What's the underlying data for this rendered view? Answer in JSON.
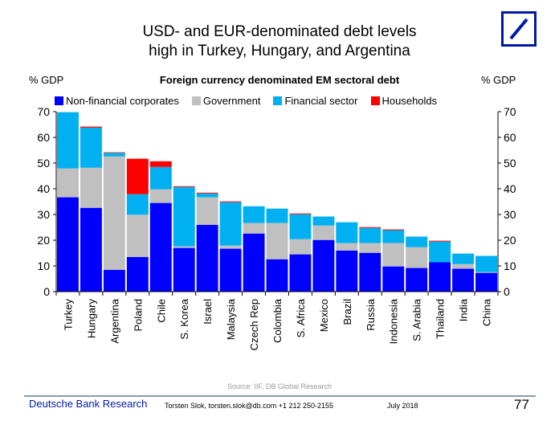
{
  "title_line1": "USD- and EUR-denominated debt levels",
  "title_line2": "high in Turkey, Hungary, and Argentina",
  "footer": {
    "source": "Source: IIF, DB Global Research",
    "brand": "Deutsche Bank Research",
    "author": "Torsten Slok, torsten.slok@db.com  +1 212 250-2155",
    "date": "July 2018",
    "page": "77"
  },
  "chart_data": {
    "type": "bar",
    "stacked": true,
    "title": "Foreign currency denominated EM sectoral debt",
    "ylabel_left": "% GDP",
    "ylabel_right": "% GDP",
    "ylim": [
      0,
      70
    ],
    "yticks": [
      0,
      10,
      20,
      30,
      40,
      50,
      60,
      70
    ],
    "grid": false,
    "legend_position": "top",
    "categories": [
      "Turkey",
      "Hungary",
      "Argentina",
      "Poland",
      "Chile",
      "S. Korea",
      "Israel",
      "Malaysia",
      "Czech Rep",
      "Colombia",
      "S. Africa",
      "Mexico",
      "Brazil",
      "Russia",
      "Indonesia",
      "S. Arabia",
      "Thailand",
      "India",
      "China"
    ],
    "series": [
      {
        "name": "Non-financial corporates",
        "color": "#0000ff",
        "values": [
          36.7,
          32.6,
          8.5,
          13.5,
          34.5,
          17.0,
          26.0,
          16.7,
          22.6,
          12.6,
          14.5,
          20.1,
          16.0,
          15.1,
          9.8,
          9.2,
          11.4,
          8.9,
          7.3
        ]
      },
      {
        "name": "Government",
        "color": "#c0c0c0",
        "values": [
          11.2,
          15.6,
          44.1,
          16.4,
          5.3,
          0.6,
          10.7,
          1.2,
          4.1,
          14.1,
          5.9,
          5.6,
          2.9,
          3.8,
          9.1,
          8.1,
          0.0,
          1.8,
          0.3
        ]
      },
      {
        "name": "Financial sector",
        "color": "#00b0f0",
        "values": [
          21.9,
          15.6,
          1.4,
          8.0,
          8.7,
          23.1,
          1.5,
          16.9,
          6.5,
          5.6,
          9.7,
          3.5,
          8.1,
          5.9,
          5.0,
          4.1,
          8.1,
          4.1,
          6.3
        ]
      },
      {
        "name": "Households",
        "color": "#ff0000",
        "values": [
          0.0,
          0.4,
          0.2,
          13.8,
          2.2,
          0.3,
          0.3,
          0.3,
          0.0,
          0.0,
          0.3,
          0.0,
          0.0,
          0.3,
          0.3,
          0.0,
          0.3,
          0.0,
          0.0
        ]
      }
    ]
  }
}
